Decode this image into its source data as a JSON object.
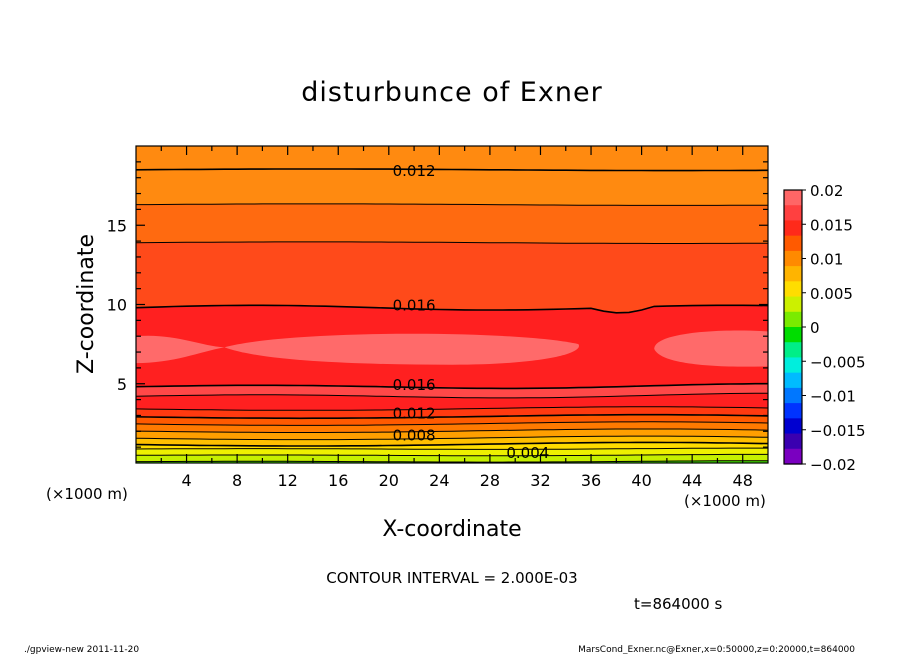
{
  "chart_data": {
    "type": "heatmap",
    "title": "disturbunce of Exner",
    "xlabel": "X-coordinate",
    "ylabel": "Z-coordinate",
    "x_unit_label": "(×1000 m)",
    "x_unit_label_right": "(×1000 m)",
    "xlim": [
      0,
      50
    ],
    "ylim": [
      0,
      20
    ],
    "x_ticks": [
      4,
      8,
      12,
      16,
      20,
      24,
      28,
      32,
      36,
      40,
      44,
      48
    ],
    "y_ticks": [
      5,
      10,
      15
    ],
    "colorbar": {
      "ticks": [
        0.02,
        0.015,
        0.01,
        0.005,
        0,
        -0.005,
        -0.01,
        -0.015,
        -0.02
      ],
      "tick_labels": [
        "0.02",
        "0.015",
        "0.01",
        "0.005",
        "0",
        "−0.005",
        "−0.01",
        "−0.015",
        "−0.02"
      ],
      "colors": [
        "#ff6666",
        "#ff4040",
        "#ff2a1a",
        "#ff5a00",
        "#ff8a00",
        "#ffb400",
        "#ffdd00",
        "#ccf000",
        "#7aeb00",
        "#00dd00",
        "#00ee88",
        "#00eedd",
        "#00bbff",
        "#0077ff",
        "#0033ff",
        "#0000d0",
        "#3a00b0",
        "#7a00c0"
      ],
      "range": [
        -0.02,
        0.02
      ]
    },
    "contour_labels": [
      {
        "text": "0.012",
        "x": 22,
        "z": 18.5
      },
      {
        "text": "0.016",
        "x": 22,
        "z": 10.0
      },
      {
        "text": "0.016",
        "x": 22,
        "z": 5.0
      },
      {
        "text": "0.012",
        "x": 22,
        "z": 3.2
      },
      {
        "text": "0.008",
        "x": 22,
        "z": 1.8
      },
      {
        "text": "0.004",
        "x": 31,
        "z": 0.7
      }
    ],
    "contour_interval_text": "CONTOUR INTERVAL = 2.000E-03",
    "time_text": "t=864000 s"
  },
  "footer": {
    "left": "./gpview-new   2011-11-20",
    "right": "MarsCond_Exner.nc@Exner,x=0:50000,z=0:20000,t=864000"
  },
  "colors": {
    "line": "#000000",
    "background": "#ffffff"
  }
}
